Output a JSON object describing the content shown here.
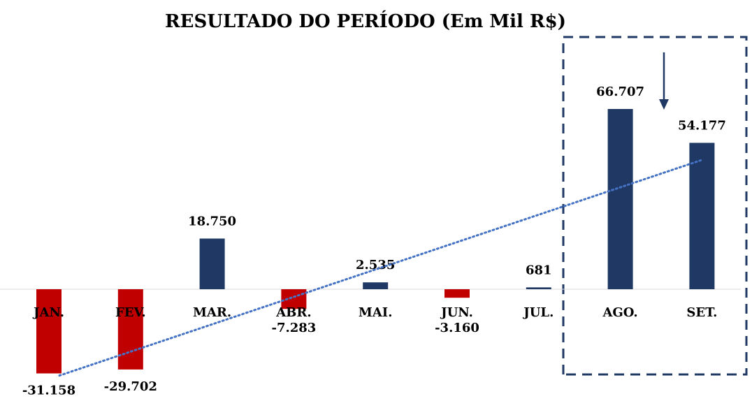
{
  "chart_data": {
    "type": "bar",
    "title": "RESULTADO DO PERÍODO (Em Mil R$)",
    "categories": [
      "JAN.",
      "FEV.",
      "MAR.",
      "ABR.",
      "MAI.",
      "JUN.",
      "JUL.",
      "AGO.",
      "SET."
    ],
    "values": [
      -31158,
      -29702,
      18750,
      -7283,
      2535,
      -3160,
      681,
      66707,
      54177
    ],
    "value_labels": [
      "-31.158",
      "-29.702",
      "18.750",
      "-7.283",
      "2.535",
      "-3.160",
      "681",
      "66.707",
      "54.177"
    ],
    "positive_color": "#1f3864",
    "negative_color": "#c00000",
    "trendline": true,
    "trendline_color": "#4472c4"
  }
}
